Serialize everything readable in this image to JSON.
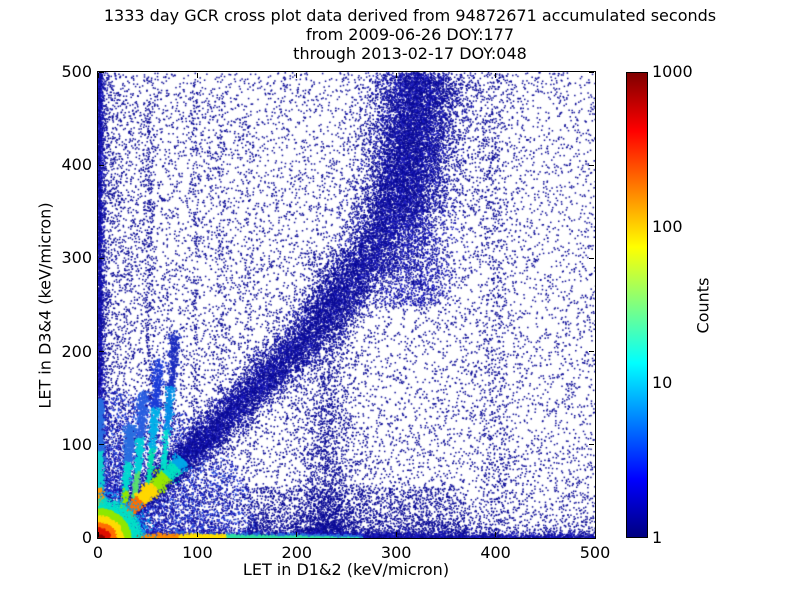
{
  "figure": {
    "title_lines": [
      "1333 day GCR cross plot data derived from 94872671 accumulated seconds",
      "from 2009-06-26 DOY:177",
      "through 2013-02-17 DOY:048"
    ]
  },
  "axes": {
    "xlabel": "LET in D1&2 (keV/micron)",
    "ylabel": "LET in D3&4 (keV/micron)",
    "xticks": [
      "0",
      "100",
      "200",
      "300",
      "400",
      "500"
    ],
    "yticks": [
      "0",
      "100",
      "200",
      "300",
      "400",
      "500"
    ]
  },
  "colorbar": {
    "label": "Counts",
    "ticks": [
      "1000",
      "100",
      "10",
      "1"
    ],
    "scale": "log",
    "colormap": "jet"
  },
  "chart_data": {
    "type": "heatmap",
    "title": "1333 day GCR cross plot data derived from 94872671 accumulated seconds from 2009-06-26 DOY:177 through 2013-02-17 DOY:048",
    "xlabel": "LET in D1&2 (keV/micron)",
    "ylabel": "LET in D3&4 (keV/micron)",
    "xlim": [
      0,
      500
    ],
    "ylim": [
      0,
      500
    ],
    "counts_range": [
      1,
      1000
    ],
    "colorbar_label": "Counts",
    "colorbar_scale": "log",
    "colormap": "jet",
    "features": [
      "very hot (red, >1000 counts) core at origin extending ~15 keV/micron along both axes",
      "hot diagonal coincidence streak y=x from origin, red to ~28, orange/yellow to ~56, green-cyan to ~80",
      "four cyan branch streaks leaving the diagonal near x=22,33,46,60 curving upward to y~120-220",
      "broad navy diagonal band along y~x widening with LET, bending vertical near x~320 and reaching y=500",
      "diffuse vertical scatter columns near x=230, x=320, x=400 and faint dotted columns at x~50,97,124,150",
      "dense blue haze in lower-left triangle below the diagonal out to x~350",
      "dense navy left edge column (x<8) and bottom edge band (y<8); bottom band cyan-green to x~265, red-orange below x~80",
      "sparse uniform single-count (navy) background scatter over whole plane"
    ],
    "density_model": {
      "seed": 1333,
      "components": [
        {
          "type": "uniform",
          "n": 5200,
          "colors": [
            "#0b0b96"
          ]
        },
        {
          "type": "pow_x",
          "n": 5600,
          "pow": 2.8,
          "colors": [
            "#0b0b96"
          ]
        },
        {
          "type": "pow_y",
          "n": 5200,
          "pow": 2.8,
          "colors": [
            "#0b0b96"
          ]
        },
        {
          "type": "haze_tri",
          "n": 7200,
          "rmax": 160,
          "rpow": 1.4,
          "colors": [
            "#1b1bc0",
            "#2a4fe0",
            "#0b0b96"
          ]
        },
        {
          "type": "haze_low",
          "n": 2600,
          "x0": 150,
          "x1": 370,
          "ymax": 55,
          "ypow": 2.2,
          "colors": [
            "#0b0b96"
          ]
        },
        {
          "type": "band",
          "n": 16500,
          "curve": [
            [
              0,
              0
            ],
            [
              120,
              121
            ],
            [
              215,
              222
            ],
            [
              268,
              292
            ],
            [
              298,
              360
            ],
            [
              315,
              432
            ],
            [
              326,
              500
            ]
          ],
          "s0": 4.5,
          "sg": 0.028,
          "colors": [
            "#0b0b96",
            "#0b0b96",
            "#0b0b96",
            "#1b1bc0"
          ]
        },
        {
          "type": "column",
          "n": 2300,
          "x": 230,
          "sx": 14,
          "y0": 0,
          "y1": 310,
          "ypow": 2.0,
          "colors": [
            "#0b0b96"
          ]
        },
        {
          "type": "plume",
          "n": 3400,
          "x": 318,
          "sx": 19,
          "y0": 250,
          "y1": 500,
          "colors": [
            "#0b0b96",
            "#1b1bc0"
          ]
        },
        {
          "type": "plume",
          "n": 1500,
          "x": 325,
          "sx": 38,
          "y0": 350,
          "y1": 500,
          "colors": [
            "#0b0b96"
          ]
        },
        {
          "type": "column",
          "n": 650,
          "x": 398,
          "sx": 8,
          "y0": 0,
          "y1": 500,
          "ypow": 1,
          "colors": [
            "#0b0b96"
          ]
        },
        {
          "type": "column",
          "n": 300,
          "x": 51,
          "sx": 2.2,
          "y0": 150,
          "y1": 470,
          "ypow": 1,
          "colors": [
            "#0b0b96"
          ]
        },
        {
          "type": "column",
          "n": 220,
          "x": 97,
          "sx": 2.2,
          "y0": 100,
          "y1": 490,
          "ypow": 1,
          "colors": [
            "#0b0b96"
          ]
        },
        {
          "type": "column",
          "n": 170,
          "x": 124,
          "sx": 2.5,
          "y0": 80,
          "y1": 480,
          "ypow": 1,
          "colors": [
            "#0b0b96"
          ]
        },
        {
          "type": "column",
          "n": 130,
          "x": 150,
          "sx": 2.5,
          "y0": 80,
          "y1": 450,
          "ypow": 1,
          "colors": [
            "#0b0b96"
          ]
        },
        {
          "type": "exp_left",
          "n": 2600,
          "scale": 2.3,
          "colors": [
            "#0b0b96",
            "#1b1bc0"
          ]
        },
        {
          "type": "exp_bottom",
          "n": 3400,
          "scale": 2.3,
          "xpow": 1.2,
          "colors": [
            "#0b0b96",
            "#1b1bc0"
          ]
        },
        {
          "type": "left_strip",
          "n": 1700,
          "xscale": 1.6,
          "ymax": 150,
          "ypow": 1.9,
          "stops": [
            [
              26,
              "#e01000"
            ],
            [
              55,
              "#ff9a00"
            ],
            [
              95,
              "#10d0d0"
            ],
            [
              160,
              "#2a6fe0"
            ]
          ]
        },
        {
          "type": "bottom_strip",
          "n": 2600,
          "yscale": 1.6,
          "xmax": 265,
          "xpow": 1.2,
          "stops": [
            [
              42,
              "#e01000"
            ],
            [
              80,
              "#ff8c00"
            ],
            [
              128,
              "#ffe000"
            ],
            [
              265,
              "#30e0a0"
            ]
          ]
        },
        {
          "type": "branch",
          "n": 800,
          "t0": 22,
          "len": 100,
          "bend": 10,
          "stops": [
            [
              0.3,
              "#90e800"
            ],
            [
              0.6,
              "#00d8d0"
            ],
            [
              1,
              "#2a6fe0"
            ]
          ]
        },
        {
          "type": "branch",
          "n": 750,
          "t0": 33,
          "len": 125,
          "bend": 12,
          "stops": [
            [
              0.3,
              "#58e070"
            ],
            [
              0.6,
              "#00d0d8"
            ],
            [
              1,
              "#2a5fe0"
            ]
          ]
        },
        {
          "type": "branch",
          "n": 700,
          "t0": 46,
          "len": 145,
          "bend": 14,
          "stops": [
            [
              0.35,
              "#00e0b0"
            ],
            [
              0.65,
              "#00b0e8"
            ],
            [
              1,
              "#1b3cd8"
            ]
          ]
        },
        {
          "type": "branch",
          "n": 620,
          "t0": 60,
          "len": 160,
          "bend": 16,
          "stops": [
            [
              0.35,
              "#00dcd0"
            ],
            [
              0.65,
              "#0090e8"
            ],
            [
              1,
              "#1b2cc0"
            ]
          ]
        },
        {
          "type": "diag_streak",
          "n": 3200,
          "tmax": 85,
          "tpow": 1.25,
          "w0": 1.6,
          "wg": 0.035,
          "stops": [
            [
              14,
              "#8c0000"
            ],
            [
              28,
              "#d00000"
            ],
            [
              42,
              "#ff7000"
            ],
            [
              56,
              "#ffd800"
            ],
            [
              68,
              "#98e800"
            ],
            [
              78,
              "#00e0c0"
            ],
            [
              85,
              "#00a8e8"
            ]
          ]
        },
        {
          "type": "origin_blob",
          "n": 9000,
          "rscale": 22,
          "rings": [
            [
              6,
              "#8c0000"
            ],
            [
              12,
              "#e01000"
            ],
            [
              18,
              "#ff7000"
            ],
            [
              25,
              "#ffdc00"
            ],
            [
              33,
              "#90e800"
            ],
            [
              44,
              "#00e0c8"
            ],
            [
              58,
              "#00a0f0"
            ],
            [
              85,
              "#2a4fe0"
            ],
            [
              160,
              "#1b1bc0"
            ]
          ]
        }
      ]
    }
  }
}
